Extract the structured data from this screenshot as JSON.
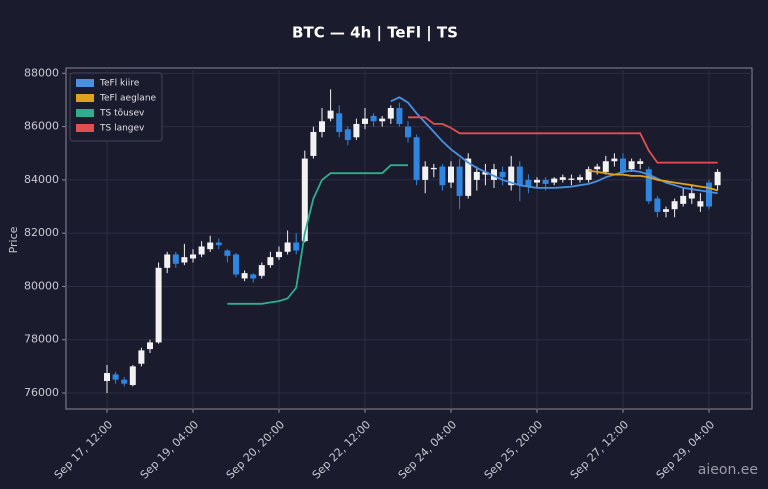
{
  "chart_data": {
    "type": "candlestick",
    "title": "BTC — 4h  |  TeFl  |  TS",
    "y_label": "Price",
    "categories": [
      "Sep 17, 12:00",
      "Sep 17, 16:00",
      "Sep 17, 20:00",
      "Sep 18, 00:00",
      "Sep 18, 04:00",
      "Sep 18, 08:00",
      "Sep 18, 12:00",
      "Sep 18, 16:00",
      "Sep 18, 20:00",
      "Sep 19, 00:00",
      "Sep 19, 04:00",
      "Sep 19, 08:00",
      "Sep 19, 12:00",
      "Sep 19, 16:00",
      "Sep 19, 20:00",
      "Sep 20, 00:00",
      "Sep 20, 04:00",
      "Sep 20, 08:00",
      "Sep 20, 12:00",
      "Sep 20, 16:00",
      "Sep 20, 20:00",
      "Sep 21, 00:00",
      "Sep 21, 04:00",
      "Sep 21, 08:00",
      "Sep 21, 12:00",
      "Sep 21, 16:00",
      "Sep 21, 20:00",
      "Sep 22, 00:00",
      "Sep 22, 04:00",
      "Sep 22, 08:00",
      "Sep 22, 12:00",
      "Sep 22, 16:00",
      "Sep 22, 20:00",
      "Sep 23, 00:00",
      "Sep 23, 04:00",
      "Sep 23, 08:00",
      "Sep 23, 12:00",
      "Sep 23, 16:00",
      "Sep 23, 20:00",
      "Sep 24, 00:00",
      "Sep 24, 04:00",
      "Sep 24, 08:00",
      "Sep 24, 12:00",
      "Sep 24, 16:00",
      "Sep 24, 20:00",
      "Sep 25, 00:00",
      "Sep 25, 04:00",
      "Sep 25, 08:00",
      "Sep 25, 12:00",
      "Sep 25, 16:00",
      "Sep 25, 20:00",
      "Sep 26, 00:00",
      "Sep 26, 04:00",
      "Sep 26, 08:00",
      "Sep 26, 12:00",
      "Sep 26, 16:00",
      "Sep 26, 20:00",
      "Sep 27, 00:00",
      "Sep 27, 04:00",
      "Sep 27, 08:00",
      "Sep 27, 12:00",
      "Sep 27, 16:00",
      "Sep 27, 20:00",
      "Sep 28, 00:00",
      "Sep 28, 04:00",
      "Sep 28, 08:00",
      "Sep 28, 12:00",
      "Sep 28, 16:00",
      "Sep 28, 20:00",
      "Sep 29, 00:00",
      "Sep 29, 04:00",
      "Sep 29, 08:00"
    ],
    "open": [
      76450,
      76700,
      76500,
      76300,
      77100,
      77650,
      77900,
      80700,
      81200,
      80900,
      81050,
      81200,
      81400,
      81650,
      81350,
      81200,
      80300,
      80450,
      80400,
      80800,
      81100,
      81300,
      81650,
      81700,
      84900,
      85800,
      86300,
      86500,
      85900,
      85600,
      86100,
      86400,
      86200,
      86300,
      86700,
      86000,
      85600,
      84000,
      84400,
      84500,
      83900,
      84500,
      83400,
      84000,
      84200,
      84000,
      84300,
      83800,
      84500,
      84000,
      83900,
      84000,
      83900,
      84000,
      84000,
      84000,
      84000,
      84400,
      84300,
      84700,
      84800,
      84400,
      84600,
      84400,
      83300,
      82800,
      82900,
      83100,
      83300,
      83000,
      83900,
      83800
    ],
    "high": [
      77050,
      76800,
      76600,
      77050,
      77700,
      78000,
      80900,
      81300,
      81300,
      81600,
      81400,
      81700,
      81900,
      81800,
      81400,
      81250,
      80600,
      80500,
      80900,
      81300,
      81500,
      82100,
      82000,
      85100,
      86000,
      86700,
      87400,
      86800,
      86000,
      86300,
      86700,
      86500,
      86400,
      86800,
      86900,
      86200,
      85700,
      84700,
      84600,
      84600,
      84700,
      84800,
      85000,
      84500,
      84600,
      84600,
      84500,
      84900,
      84700,
      84200,
      84100,
      84100,
      84100,
      84200,
      84200,
      84200,
      84500,
      84600,
      84900,
      85000,
      85000,
      84800,
      84800,
      84500,
      83400,
      83000,
      83300,
      83700,
      83800,
      83500,
      84000,
      84400
    ],
    "low": [
      76000,
      76350,
      76250,
      76250,
      77000,
      77500,
      77850,
      80500,
      80700,
      80800,
      80900,
      81100,
      81300,
      81400,
      80900,
      80350,
      80200,
      80150,
      80300,
      80700,
      81000,
      81200,
      81200,
      81650,
      84800,
      85600,
      86200,
      85600,
      85300,
      85500,
      85900,
      86000,
      86000,
      86100,
      86000,
      85400,
      83800,
      83500,
      84100,
      83600,
      83700,
      82900,
      83300,
      83600,
      83800,
      83700,
      83800,
      83600,
      83200,
      83500,
      83700,
      83600,
      83800,
      83900,
      83800,
      83900,
      83900,
      84200,
      84200,
      84500,
      84200,
      84300,
      84400,
      83100,
      82600,
      82600,
      82600,
      83000,
      83100,
      82800,
      82900,
      83600
    ],
    "close": [
      76750,
      76500,
      76350,
      77000,
      77600,
      77900,
      80700,
      81200,
      80850,
      81100,
      81200,
      81500,
      81650,
      81550,
      81150,
      80450,
      80500,
      80300,
      80800,
      81100,
      81300,
      81650,
      81350,
      84800,
      85800,
      86200,
      86600,
      85800,
      85500,
      86100,
      86300,
      86200,
      86300,
      86700,
      86100,
      85600,
      84000,
      84500,
      84450,
      83800,
      84500,
      83400,
      84800,
      84300,
      84300,
      84400,
      84100,
      84500,
      83800,
      83750,
      84000,
      83850,
      84050,
      84100,
      84050,
      84100,
      84400,
      84500,
      84700,
      84800,
      84300,
      84700,
      84700,
      83200,
      82800,
      82900,
      83200,
      83400,
      83500,
      83200,
      83000,
      84300
    ],
    "up_color": "#f2f2f2",
    "down_color": "#2f86e0",
    "series": [
      {
        "name": "TeFl kiire",
        "color": "#4a90e2",
        "values": [
          null,
          null,
          null,
          null,
          null,
          null,
          null,
          null,
          null,
          null,
          null,
          null,
          null,
          null,
          null,
          null,
          null,
          null,
          null,
          null,
          null,
          null,
          null,
          null,
          null,
          null,
          null,
          null,
          null,
          null,
          null,
          null,
          null,
          86950,
          87100,
          86900,
          86500,
          86150,
          85800,
          85450,
          85150,
          84900,
          84650,
          84450,
          84300,
          84150,
          84000,
          83900,
          83800,
          83750,
          83700,
          83700,
          83700,
          83720,
          83750,
          83800,
          83850,
          83950,
          84100,
          84200,
          84300,
          84350,
          84300,
          84200,
          84050,
          83900,
          83800,
          83700,
          83650,
          83600,
          83550,
          83500
        ]
      },
      {
        "name": "TeFl aeglane",
        "color": "#e0a020",
        "values": [
          null,
          null,
          null,
          null,
          null,
          null,
          null,
          null,
          null,
          null,
          null,
          null,
          null,
          null,
          null,
          null,
          null,
          null,
          null,
          null,
          null,
          null,
          null,
          null,
          null,
          null,
          null,
          null,
          null,
          null,
          null,
          null,
          null,
          null,
          null,
          null,
          null,
          null,
          null,
          null,
          null,
          null,
          null,
          null,
          null,
          null,
          null,
          null,
          null,
          null,
          null,
          null,
          null,
          null,
          null,
          null,
          84350,
          84300,
          84250,
          84200,
          84200,
          84150,
          84150,
          84100,
          84000,
          83950,
          83900,
          83850,
          83800,
          83750,
          83700,
          83600
        ]
      },
      {
        "name": "TS tõusev",
        "color": "#2fae8e",
        "values": [
          null,
          null,
          null,
          null,
          null,
          null,
          null,
          null,
          null,
          null,
          null,
          null,
          null,
          null,
          79350,
          79350,
          79350,
          79350,
          79350,
          79400,
          79450,
          79550,
          79950,
          82000,
          83300,
          84000,
          84250,
          84250,
          84250,
          84250,
          84250,
          84250,
          84250,
          84550,
          84550,
          84550,
          null,
          null,
          null,
          null,
          null,
          null,
          null,
          null,
          null,
          null,
          null,
          null,
          null,
          null,
          null,
          null,
          null,
          null,
          null,
          null,
          null,
          null,
          null,
          null,
          null,
          null,
          null,
          null,
          null,
          null,
          null,
          null,
          null,
          null,
          null,
          null
        ]
      },
      {
        "name": "TS langev",
        "color": "#e05050",
        "values": [
          null,
          null,
          null,
          null,
          null,
          null,
          null,
          null,
          null,
          null,
          null,
          null,
          null,
          null,
          null,
          null,
          null,
          null,
          null,
          null,
          null,
          null,
          null,
          null,
          null,
          null,
          null,
          null,
          null,
          null,
          null,
          null,
          null,
          null,
          null,
          86350,
          86350,
          86350,
          86100,
          86100,
          85950,
          85750,
          85750,
          85750,
          85750,
          85750,
          85750,
          85750,
          85750,
          85750,
          85750,
          85750,
          85750,
          85750,
          85750,
          85750,
          85750,
          85750,
          85750,
          85750,
          85750,
          85750,
          85750,
          85100,
          84650,
          84650,
          84650,
          84650,
          84650,
          84650,
          84650,
          84650
        ]
      }
    ],
    "ylim": [
      75400,
      88200
    ],
    "yticks": [
      76000,
      78000,
      80000,
      82000,
      84000,
      86000,
      88000
    ],
    "xticks": [
      "Sep 17, 12:00",
      "Sep 19, 04:00",
      "Sep 20, 20:00",
      "Sep 22, 12:00",
      "Sep 24, 04:00",
      "Sep 25, 20:00",
      "Sep 27, 12:00",
      "Sep 29, 04:00"
    ],
    "grid": true,
    "legend": "upper left"
  },
  "watermark": "aieon.ee"
}
